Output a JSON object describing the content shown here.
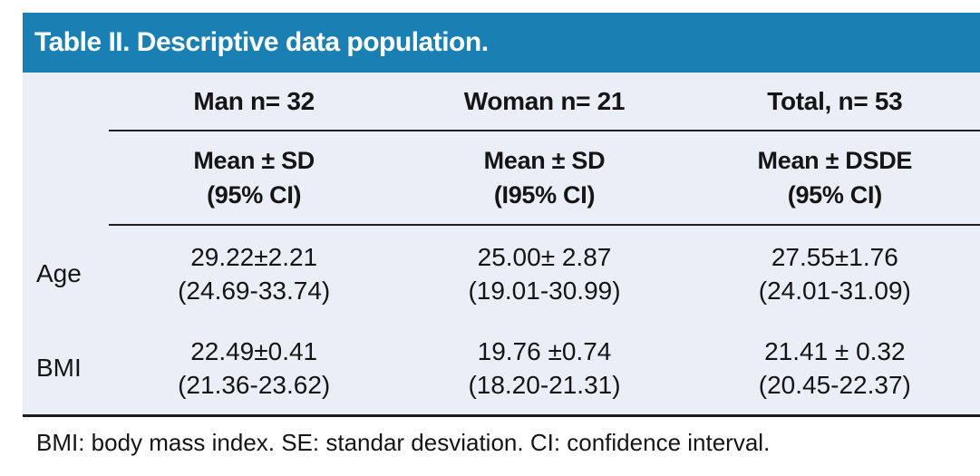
{
  "header": {
    "title": "Table II. Descriptive data population."
  },
  "table": {
    "columns": [
      {
        "group": "Man n= 32",
        "stat": "Mean ± SD",
        "ci": "(95% CI)"
      },
      {
        "group": "Woman n= 21",
        "stat": "Mean ± SD",
        "ci": "(I95% CI)"
      },
      {
        "group": "Total, n= 53",
        "stat": "Mean ± DSDE",
        "ci": "(95% CI)"
      }
    ],
    "rows": [
      {
        "label": "Age",
        "cells": [
          {
            "mean": "29.22±2.21",
            "ci": "(24.69-33.74)"
          },
          {
            "mean": "25.00± 2.87",
            "ci": "(19.01-30.99)"
          },
          {
            "mean": "27.55±1.76",
            "ci": "(24.01-31.09)"
          }
        ]
      },
      {
        "label": "BMI",
        "cells": [
          {
            "mean": "22.49±0.41",
            "ci": "(21.36-23.62)"
          },
          {
            "mean": "19.76 ±0.74",
            "ci": "(18.20-21.31)"
          },
          {
            "mean": "21.41 ± 0.32",
            "ci": "(20.45-22.37)"
          }
        ]
      }
    ]
  },
  "footnote": "BMI: body mass index. SE: standar desviation. CI: confidence interval.",
  "colors": {
    "header_bg": "#1a80b3",
    "header_text": "#ffffff",
    "panel_bg": "#eaeef6",
    "rule": "#1b1b1b",
    "body_text": "#151515"
  },
  "chart_data": {
    "type": "table",
    "title": "Table II. Descriptive data population.",
    "column_headers": [
      "Man n= 32 — Mean ± SD (95% CI)",
      "Woman n= 21 — Mean ± SD (I95% CI)",
      "Total, n= 53 — Mean ± DSDE (95% CI)"
    ],
    "row_labels": [
      "Age",
      "BMI"
    ],
    "values": [
      [
        "29.22±2.21 (24.69-33.74)",
        "25.00± 2.87 (19.01-30.99)",
        "27.55±1.76 (24.01-31.09)"
      ],
      [
        "22.49±0.41 (21.36-23.62)",
        "19.76 ±0.74 (18.20-21.31)",
        "21.41 ± 0.32 (20.45-22.37)"
      ]
    ],
    "footnote": "BMI: body mass index. SE: standar desviation. CI: confidence interval."
  }
}
